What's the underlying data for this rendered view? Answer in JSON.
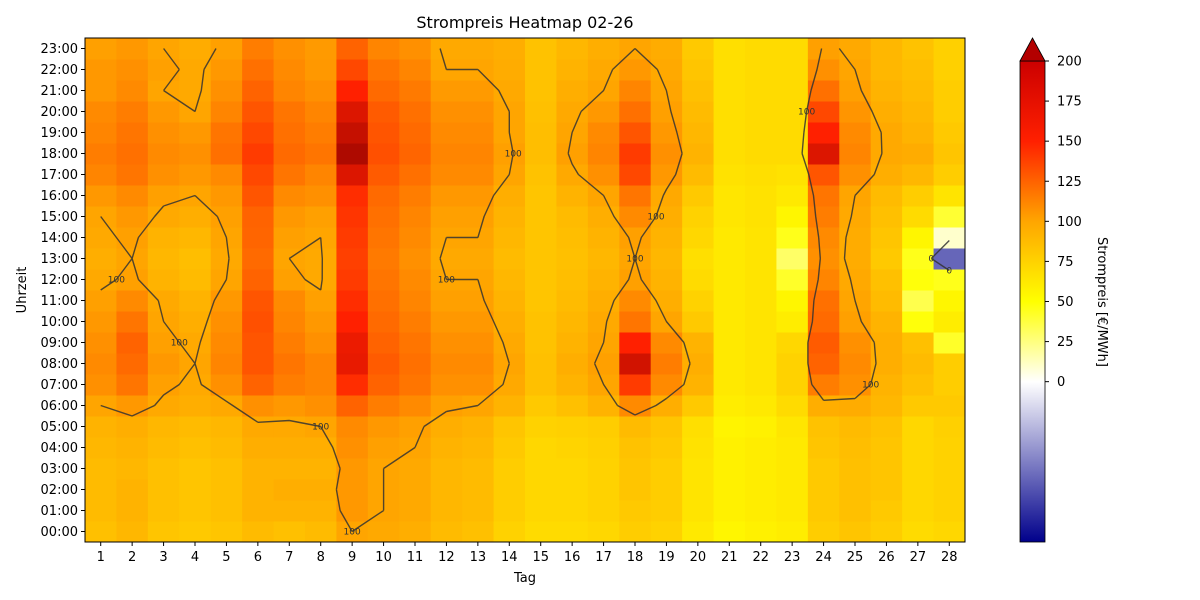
{
  "chart_data": {
    "type": "heatmap",
    "title": "Strompreis Heatmap 02-26",
    "xlabel": "Tag",
    "ylabel": "Uhrzeit",
    "colorbar_label": "Strompreis [€/MWh]",
    "x_categories": [
      "1",
      "2",
      "3",
      "4",
      "5",
      "6",
      "7",
      "8",
      "9",
      "10",
      "11",
      "12",
      "13",
      "14",
      "15",
      "16",
      "17",
      "18",
      "19",
      "20",
      "21",
      "22",
      "23",
      "24",
      "25",
      "26",
      "27",
      "28"
    ],
    "y_categories": [
      "00:00",
      "01:00",
      "02:00",
      "03:00",
      "04:00",
      "05:00",
      "06:00",
      "07:00",
      "08:00",
      "09:00",
      "10:00",
      "11:00",
      "12:00",
      "13:00",
      "14:00",
      "15:00",
      "16:00",
      "17:00",
      "18:00",
      "19:00",
      "20:00",
      "21:00",
      "22:00",
      "23:00"
    ],
    "color_range": [
      -100,
      200
    ],
    "colorbar_ticks": [
      "200",
      "175",
      "150",
      "125",
      "100",
      "75",
      "50",
      "25",
      "0"
    ],
    "colorbar_extend": "max",
    "contour_levels": [
      0,
      100,
      200
    ],
    "contour_label_100": "100",
    "contour_label_200": "200",
    "contour_label_0": "0",
    "colormap": [
      "#00008b",
      "#ffffff",
      "#ffff00",
      "#ffa500",
      "#ff0000",
      "#8b0000"
    ],
    "values": [
      [
        85,
        90,
        82,
        80,
        82,
        88,
        85,
        88,
        100,
        98,
        95,
        88,
        85,
        75,
        70,
        70,
        72,
        78,
        75,
        62,
        55,
        58,
        60,
        78,
        82,
        78,
        70,
        72
      ],
      [
        88,
        92,
        85,
        82,
        85,
        92,
        92,
        92,
        105,
        100,
        98,
        90,
        88,
        78,
        72,
        72,
        75,
        80,
        78,
        65,
        58,
        60,
        62,
        80,
        85,
        80,
        72,
        75
      ],
      [
        88,
        92,
        85,
        82,
        85,
        92,
        95,
        95,
        105,
        100,
        98,
        90,
        88,
        78,
        72,
        72,
        75,
        82,
        78,
        65,
        58,
        60,
        62,
        80,
        85,
        82,
        72,
        75
      ],
      [
        88,
        90,
        85,
        82,
        85,
        92,
        92,
        92,
        105,
        100,
        98,
        90,
        88,
        78,
        72,
        72,
        75,
        82,
        78,
        65,
        58,
        60,
        62,
        80,
        85,
        82,
        72,
        75
      ],
      [
        90,
        92,
        88,
        85,
        88,
        95,
        95,
        95,
        108,
        102,
        100,
        92,
        90,
        80,
        72,
        74,
        76,
        84,
        80,
        66,
        58,
        60,
        62,
        82,
        86,
        82,
        72,
        75
      ],
      [
        92,
        95,
        90,
        88,
        90,
        98,
        98,
        100,
        110,
        105,
        102,
        95,
        92,
        82,
        75,
        76,
        78,
        88,
        82,
        68,
        56,
        58,
        64,
        84,
        88,
        84,
        72,
        76
      ],
      [
        100,
        105,
        98,
        95,
        98,
        108,
        105,
        108,
        125,
        115,
        110,
        102,
        100,
        92,
        80,
        85,
        92,
        110,
        95,
        80,
        60,
        62,
        70,
        95,
        96,
        90,
        80,
        80
      ],
      [
        108,
        118,
        102,
        98,
        108,
        125,
        115,
        112,
        145,
        125,
        118,
        108,
        108,
        98,
        85,
        92,
        100,
        140,
        110,
        92,
        62,
        65,
        75,
        115,
        108,
        92,
        85,
        78
      ],
      [
        110,
        122,
        105,
        100,
        112,
        130,
        118,
        112,
        160,
        128,
        120,
        110,
        110,
        100,
        85,
        95,
        102,
        170,
        115,
        95,
        62,
        65,
        75,
        125,
        110,
        95,
        88,
        78
      ],
      [
        108,
        125,
        102,
        98,
        110,
        130,
        115,
        108,
        158,
        125,
        118,
        108,
        108,
        98,
        84,
        92,
        100,
        150,
        110,
        92,
        62,
        65,
        72,
        128,
        108,
        95,
        85,
        42
      ],
      [
        105,
        118,
        100,
        95,
        108,
        132,
        112,
        105,
        150,
        122,
        115,
        105,
        105,
        95,
        84,
        90,
        98,
        118,
        100,
        80,
        62,
        65,
        60,
        122,
        102,
        92,
        48,
        60
      ],
      [
        102,
        110,
        98,
        92,
        105,
        130,
        110,
        102,
        145,
        120,
        112,
        102,
        102,
        92,
        82,
        88,
        95,
        110,
        95,
        75,
        62,
        65,
        55,
        120,
        100,
        88,
        35,
        55
      ],
      [
        98,
        102,
        92,
        88,
        100,
        125,
        102,
        98,
        140,
        118,
        110,
        100,
        100,
        90,
        82,
        86,
        92,
        102,
        92,
        70,
        62,
        65,
        42,
        112,
        98,
        85,
        48,
        45
      ],
      [
        95,
        100,
        90,
        86,
        98,
        122,
        100,
        98,
        138,
        116,
        108,
        98,
        98,
        88,
        82,
        85,
        90,
        100,
        90,
        68,
        62,
        65,
        30,
        108,
        96,
        80,
        45,
        -60
      ],
      [
        98,
        102,
        92,
        90,
        100,
        124,
        102,
        100,
        140,
        118,
        110,
        100,
        100,
        90,
        82,
        86,
        92,
        102,
        92,
        72,
        62,
        65,
        45,
        110,
        96,
        82,
        55,
        10
      ],
      [
        100,
        105,
        98,
        95,
        102,
        125,
        105,
        102,
        142,
        120,
        112,
        102,
        102,
        92,
        82,
        88,
        95,
        110,
        95,
        75,
        64,
        66,
        55,
        115,
        98,
        85,
        70,
        40
      ],
      [
        105,
        110,
        102,
        100,
        105,
        130,
        110,
        108,
        145,
        122,
        115,
        105,
        105,
        95,
        82,
        92,
        100,
        118,
        98,
        80,
        64,
        66,
        62,
        118,
        100,
        88,
        78,
        65
      ],
      [
        112,
        118,
        108,
        105,
        110,
        135,
        118,
        112,
        165,
        128,
        120,
        110,
        110,
        100,
        84,
        98,
        108,
        135,
        105,
        88,
        66,
        68,
        66,
        130,
        108,
        95,
        90,
        78
      ],
      [
        115,
        120,
        110,
        108,
        120,
        140,
        122,
        118,
        185,
        132,
        124,
        112,
        112,
        102,
        86,
        102,
        112,
        140,
        108,
        92,
        68,
        70,
        70,
        165,
        112,
        98,
        96,
        82
      ],
      [
        112,
        118,
        108,
        105,
        118,
        135,
        120,
        115,
        175,
        130,
        122,
        110,
        110,
        100,
        86,
        100,
        110,
        130,
        105,
        90,
        68,
        70,
        70,
        150,
        110,
        98,
        92,
        80
      ],
      [
        110,
        115,
        105,
        100,
        112,
        130,
        118,
        112,
        165,
        128,
        120,
        108,
        108,
        100,
        85,
        98,
        105,
        120,
        102,
        88,
        68,
        70,
        70,
        135,
        106,
        95,
        90,
        78
      ],
      [
        105,
        110,
        100,
        98,
        108,
        125,
        112,
        108,
        150,
        122,
        116,
        104,
        104,
        98,
        84,
        95,
        100,
        112,
        100,
        85,
        68,
        70,
        70,
        120,
        102,
        92,
        88,
        78
      ],
      [
        105,
        108,
        102,
        98,
        105,
        120,
        110,
        105,
        135,
        118,
        112,
        100,
        100,
        96,
        84,
        92,
        98,
        105,
        98,
        82,
        68,
        70,
        70,
        108,
        100,
        90,
        86,
        76
      ],
      [
        102,
        105,
        100,
        96,
        102,
        115,
        108,
        104,
        125,
        112,
        108,
        98,
        98,
        95,
        84,
        90,
        95,
        100,
        96,
        80,
        68,
        70,
        70,
        102,
        98,
        90,
        84,
        76
      ]
    ]
  }
}
